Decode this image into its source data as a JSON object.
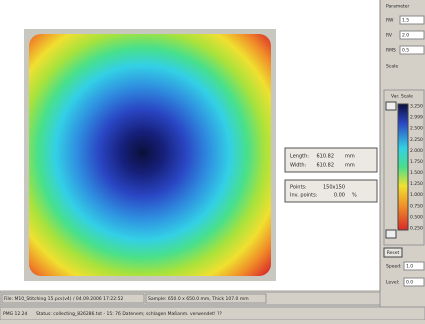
{
  "info": {
    "length_label": "Length:",
    "length_value": "610.82",
    "length_unit": "mm",
    "width_label": "Width:",
    "width_value": "610.82",
    "width_unit": "mm",
    "points_label": "Points:",
    "points_value": "150x150",
    "inv_label": "Inv. points:",
    "inv_value": "0.00",
    "inv_unit": "%"
  },
  "panel": {
    "header": "Parameter",
    "rows": [
      {
        "label": "RW",
        "value": "1.5"
      },
      {
        "label": "RV",
        "value": "2.0"
      },
      {
        "label": "RMS",
        "value": "0.5"
      }
    ],
    "scale_label": "Scale",
    "scale_title": "Var. Scale",
    "scale_labels": [
      "3.250",
      "2.999",
      "2.500",
      "2.250",
      "2.000",
      "1.750",
      "1.500",
      "1.250",
      "1.000",
      "0.750",
      "0.500",
      "0.250"
    ],
    "reset": "Reset",
    "speed_label": "Speed:",
    "speed_value": "1.0",
    "level_label": "Level:",
    "level_value": "0.0"
  },
  "status": {
    "file": "File: M10_Stitching 15.pcs(v4) / 04.09.2006 17:22:52",
    "sample": "Sample: 650.0 x 650.0 mm, Thick 107.0 mm",
    "mode": "PMG 12.2d",
    "message": "Status: collecting_826286.txt - 15: 76 Datenem; schlagen Maßanm. verwendet! ??"
  }
}
